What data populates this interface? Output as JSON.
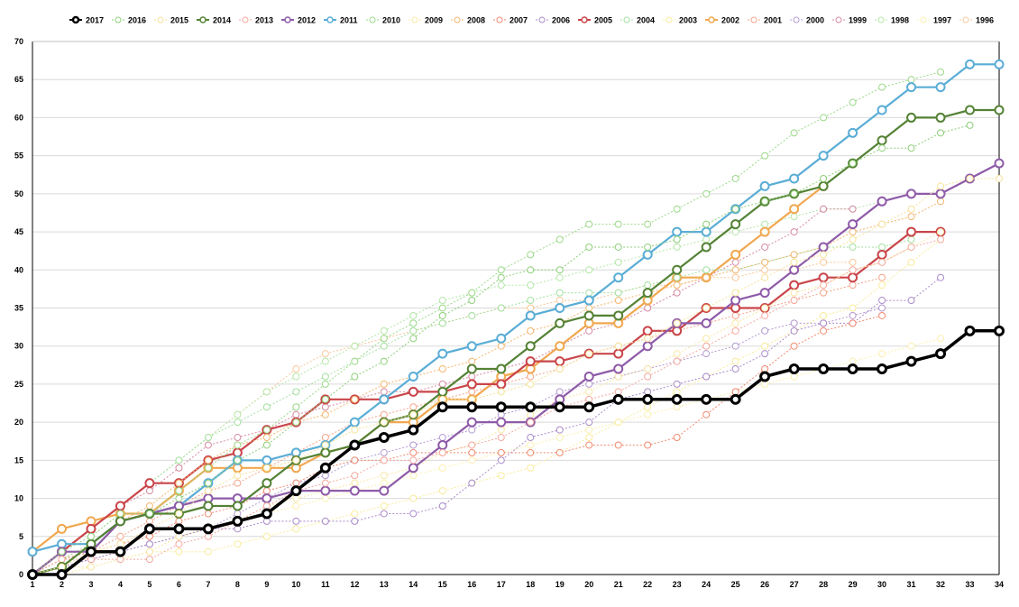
{
  "chart_data": {
    "type": "line",
    "title": "",
    "xlabel": "",
    "ylabel": "",
    "x": [
      1,
      2,
      3,
      4,
      5,
      6,
      7,
      8,
      9,
      10,
      11,
      12,
      13,
      14,
      15,
      16,
      17,
      18,
      19,
      20,
      21,
      22,
      23,
      24,
      25,
      26,
      27,
      28,
      29,
      30,
      31,
      32,
      33,
      34
    ],
    "xlim": [
      1,
      34
    ],
    "ylim": [
      0,
      70
    ],
    "yticks": [
      0,
      5,
      10,
      15,
      20,
      25,
      30,
      35,
      40,
      45,
      50,
      55,
      60,
      65,
      70
    ],
    "grid": "horizontal",
    "legend_position": "top",
    "series": [
      {
        "name": "2017",
        "color": "#000000",
        "style": "solid-bold",
        "values": [
          0,
          0,
          3,
          3,
          6,
          6,
          6,
          7,
          8,
          11,
          14,
          17,
          18,
          19,
          22,
          22,
          22,
          22,
          22,
          22,
          23,
          23,
          23,
          23,
          23,
          26,
          27,
          27,
          27,
          27,
          28,
          29,
          32,
          32
        ]
      },
      {
        "name": "2016",
        "color": "#8fcf7a",
        "style": "dotted",
        "values": [
          0,
          3,
          5,
          8,
          8,
          10,
          12,
          15,
          17,
          20,
          23,
          26,
          28,
          31,
          34,
          36,
          39,
          40,
          40,
          43,
          43,
          43,
          44,
          46,
          48,
          49,
          50,
          52,
          54,
          56,
          56,
          58,
          59,
          null
        ]
      },
      {
        "name": "2015",
        "color": "#f6e39a",
        "style": "dotted",
        "values": [
          0,
          1,
          3,
          4,
          6,
          8,
          11,
          13,
          14,
          15,
          17,
          19,
          20,
          21,
          23,
          23,
          24,
          25,
          27,
          29,
          30,
          31,
          33,
          35,
          37,
          39,
          41,
          42,
          44,
          46,
          48,
          51,
          52,
          52
        ]
      },
      {
        "name": "2014",
        "color": "#548235",
        "style": "solid",
        "values": [
          0,
          1,
          4,
          7,
          8,
          8,
          9,
          9,
          12,
          15,
          16,
          17,
          20,
          21,
          24,
          27,
          27,
          30,
          33,
          34,
          34,
          37,
          40,
          43,
          46,
          49,
          50,
          51,
          54,
          57,
          60,
          60,
          61,
          61
        ]
      },
      {
        "name": "2013",
        "color": "#f4a9a0",
        "style": "dotted",
        "values": [
          0,
          2,
          2,
          2,
          2,
          4,
          5,
          7,
          9,
          11,
          12,
          13,
          15,
          15,
          16,
          17,
          18,
          20,
          22,
          23,
          24,
          26,
          28,
          30,
          32,
          34,
          36,
          38,
          40,
          41,
          43,
          44,
          null,
          null
        ]
      },
      {
        "name": "2012",
        "color": "#8e5ba8",
        "style": "solid",
        "values": [
          0,
          3,
          3,
          7,
          8,
          9,
          10,
          10,
          10,
          11,
          11,
          11,
          11,
          14,
          17,
          20,
          20,
          20,
          23,
          26,
          27,
          30,
          33,
          33,
          36,
          37,
          40,
          43,
          46,
          49,
          50,
          50,
          52,
          54
        ]
      },
      {
        "name": "2011",
        "color": "#5aadd6",
        "style": "solid",
        "values": [
          3,
          4,
          4,
          7,
          8,
          9,
          12,
          15,
          15,
          16,
          17,
          20,
          23,
          26,
          29,
          30,
          31,
          34,
          35,
          36,
          39,
          42,
          45,
          45,
          48,
          51,
          52,
          55,
          58,
          61,
          64,
          64,
          67,
          67
        ]
      },
      {
        "name": "2010",
        "color": "#9cd98a",
        "style": "dotted",
        "values": [
          0,
          2,
          4,
          7,
          8,
          11,
          14,
          17,
          19,
          22,
          25,
          28,
          31,
          33,
          35,
          37,
          40,
          42,
          44,
          46,
          46,
          46,
          48,
          50,
          52,
          55,
          58,
          60,
          62,
          64,
          65,
          66,
          null,
          null
        ]
      },
      {
        "name": "2009",
        "color": "#f8e8a4",
        "style": "dotted",
        "values": [
          0,
          1,
          1,
          2,
          3,
          5,
          6,
          7,
          9,
          10,
          11,
          12,
          13,
          14,
          16,
          17,
          19,
          21,
          23,
          24,
          26,
          27,
          29,
          31,
          33,
          35,
          37,
          38,
          40,
          41,
          43,
          45,
          null,
          null
        ]
      },
      {
        "name": "2008",
        "color": "#f4b66e",
        "style": "dotted",
        "values": [
          0,
          2,
          4,
          7,
          9,
          12,
          15,
          17,
          18,
          20,
          21,
          23,
          25,
          26,
          27,
          28,
          30,
          32,
          33,
          35,
          36,
          37,
          38,
          39,
          40,
          41,
          42,
          43,
          45,
          46,
          47,
          49,
          null,
          null
        ]
      },
      {
        "name": "2007",
        "color": "#f08a70",
        "style": "dotted",
        "values": [
          0,
          2,
          3,
          4,
          5,
          7,
          8,
          9,
          11,
          12,
          14,
          15,
          15,
          16,
          16,
          16,
          16,
          16,
          16,
          17,
          17,
          17,
          18,
          21,
          24,
          27,
          30,
          32,
          33,
          34,
          null,
          null,
          null,
          null
        ]
      },
      {
        "name": "2006",
        "color": "#a98bc9",
        "style": "dotted",
        "values": [
          0,
          1,
          2,
          3,
          4,
          5,
          6,
          6,
          7,
          7,
          7,
          7,
          8,
          8,
          9,
          12,
          15,
          18,
          19,
          20,
          23,
          24,
          25,
          26,
          27,
          29,
          32,
          33,
          33,
          36,
          36,
          39,
          null,
          null
        ]
      },
      {
        "name": "2005",
        "color": "#c9454a",
        "style": "solid",
        "values": [
          0,
          3,
          6,
          9,
          12,
          12,
          15,
          16,
          19,
          20,
          23,
          23,
          23,
          24,
          24,
          25,
          25,
          28,
          28,
          29,
          29,
          32,
          32,
          35,
          35,
          35,
          38,
          39,
          39,
          42,
          45,
          45,
          null,
          null
        ]
      },
      {
        "name": "2004",
        "color": "#a2e0a0",
        "style": "dotted",
        "values": [
          0,
          3,
          6,
          9,
          12,
          15,
          18,
          20,
          22,
          24,
          26,
          28,
          30,
          32,
          33,
          34,
          35,
          36,
          37,
          37,
          37,
          38,
          39,
          40,
          40,
          41,
          42,
          43,
          43,
          43,
          44,
          null,
          null,
          null
        ]
      },
      {
        "name": "2003",
        "color": "#f9ec9c",
        "style": "dotted",
        "values": [
          0,
          0,
          1,
          2,
          3,
          3,
          3,
          4,
          5,
          6,
          7,
          8,
          9,
          10,
          11,
          12,
          13,
          14,
          16,
          18,
          20,
          22,
          24,
          26,
          28,
          30,
          32,
          34,
          35,
          38,
          41,
          44,
          null,
          null
        ]
      },
      {
        "name": "2002",
        "color": "#f0a850",
        "style": "solid",
        "values": [
          3,
          6,
          7,
          8,
          8,
          11,
          14,
          14,
          14,
          14,
          16,
          17,
          20,
          20,
          23,
          23,
          26,
          27,
          30,
          33,
          33,
          36,
          39,
          39,
          42,
          45,
          48,
          51,
          null,
          null,
          null,
          null,
          null,
          null
        ]
      },
      {
        "name": "2001",
        "color": "#f5a58a",
        "style": "dotted",
        "values": [
          0,
          2,
          3,
          5,
          7,
          9,
          11,
          12,
          14,
          16,
          18,
          20,
          21,
          22,
          23,
          24,
          25,
          26,
          27,
          29,
          30,
          31,
          32,
          33,
          34,
          35,
          36,
          37,
          38,
          39,
          null,
          null,
          null,
          null
        ]
      },
      {
        "name": "2000",
        "color": "#b49ad0",
        "style": "dotted",
        "values": [
          0,
          1,
          2,
          3,
          4,
          5,
          6,
          8,
          10,
          12,
          13,
          15,
          16,
          17,
          18,
          19,
          21,
          22,
          24,
          25,
          26,
          27,
          28,
          29,
          30,
          32,
          33,
          33,
          34,
          35,
          null,
          null,
          null,
          null
        ]
      },
      {
        "name": "1999",
        "color": "#d48aa0",
        "style": "dotted",
        "values": [
          0,
          3,
          6,
          9,
          11,
          14,
          17,
          18,
          19,
          21,
          22,
          23,
          24,
          24,
          25,
          26,
          27,
          28,
          30,
          32,
          33,
          35,
          37,
          39,
          41,
          43,
          45,
          48,
          48,
          null,
          null,
          null,
          null,
          null
        ]
      },
      {
        "name": "1998",
        "color": "#b5e6a8",
        "style": "dotted",
        "values": [
          0,
          3,
          6,
          9,
          12,
          15,
          18,
          21,
          24,
          26,
          28,
          30,
          32,
          34,
          36,
          37,
          38,
          38,
          39,
          40,
          41,
          42,
          43,
          44,
          45,
          46,
          47,
          48,
          48,
          49,
          50,
          null,
          null,
          null
        ]
      },
      {
        "name": "1997",
        "color": "#fbf0b0",
        "style": "dotted",
        "values": [
          0,
          1,
          2,
          3,
          4,
          5,
          6,
          7,
          8,
          9,
          10,
          11,
          12,
          13,
          14,
          15,
          16,
          17,
          18,
          19,
          20,
          21,
          22,
          23,
          24,
          25,
          26,
          27,
          28,
          29,
          30,
          31,
          null,
          null
        ]
      },
      {
        "name": "1996",
        "color": "#f9c89a",
        "style": "dotted",
        "values": [
          0,
          3,
          6,
          9,
          12,
          15,
          18,
          21,
          24,
          27,
          29,
          30,
          31,
          32,
          33,
          34,
          35,
          35,
          36,
          36,
          37,
          38,
          38,
          39,
          39,
          40,
          40,
          41,
          41,
          null,
          null,
          null,
          null,
          null
        ]
      }
    ]
  }
}
